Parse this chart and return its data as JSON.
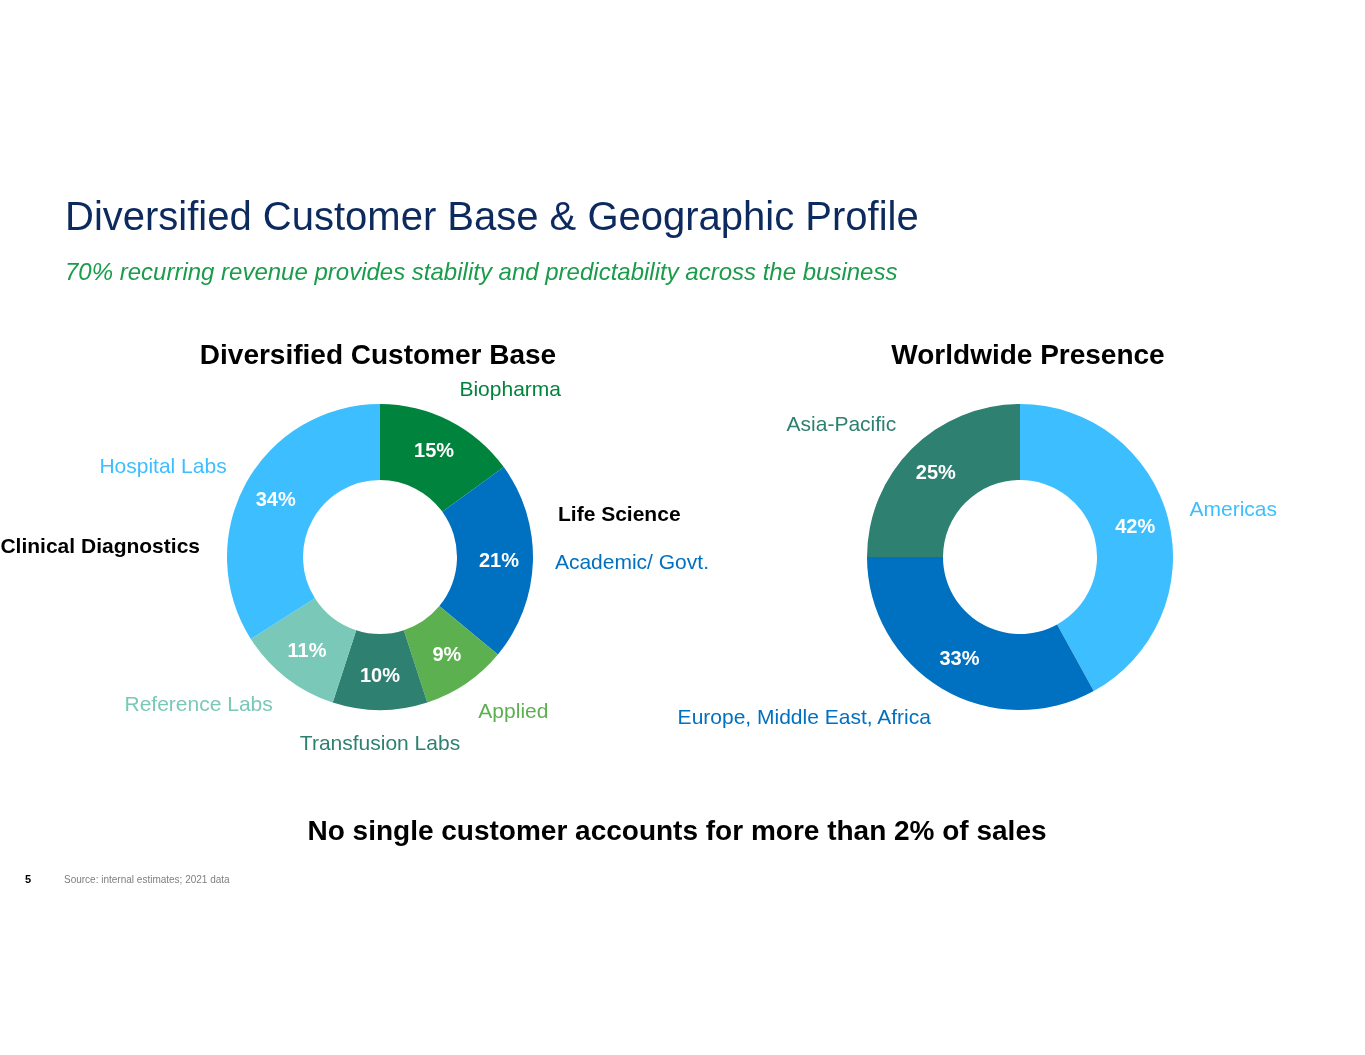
{
  "chart_data": [
    {
      "type": "donut",
      "title": "Diversified Customer Base",
      "categories": [
        "Biopharma",
        "Academic/ Govt.",
        "Applied",
        "Transfusion Labs",
        "Reference Labs",
        "Hospital Labs"
      ],
      "values": [
        15,
        21,
        9,
        10,
        11,
        34
      ],
      "colors": [
        "#00843d",
        "#0070c0",
        "#5cb050",
        "#2e8070",
        "#79c8b8",
        "#3dbeff"
      ],
      "value_labels": [
        "15%",
        "21%",
        "9%",
        "10%",
        "11%",
        "34%"
      ],
      "annotations": [
        "Diversified Customer Base & Geographic Profile",
        "70% recurring revenue provides stability and predictability across the business",
        "Life Science",
        "Clinical Diagnostics"
      ]
    },
    {
      "type": "donut",
      "title": "Worldwide Presence",
      "categories": [
        "Americas",
        "Europe, Middle East, Africa",
        "Asia-Pacific"
      ],
      "values": [
        42,
        33,
        25
      ],
      "colors": [
        "#3dbeff",
        "#0070c0",
        "#2e8070"
      ],
      "value_labels": [
        "42%",
        "33%",
        "25%"
      ],
      "annotations": [
        "No single customer accounts for more than 2% of sales",
        "Source: internal estimates; 2021 data",
        "5"
      ]
    }
  ]
}
